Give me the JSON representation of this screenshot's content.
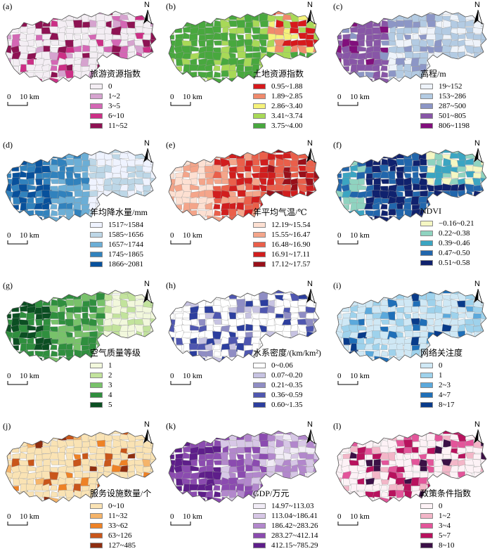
{
  "panels": [
    {
      "label": "(a)",
      "title": "旅游资源指数",
      "classes": [
        {
          "label": "0",
          "color": "#f4eef4"
        },
        {
          "label": "1~2",
          "color": "#d6a3cf"
        },
        {
          "label": "3~5",
          "color": "#d467b5"
        },
        {
          "label": "6~10",
          "color": "#cc2f86"
        },
        {
          "label": "11~52",
          "color": "#8e1253"
        }
      ]
    },
    {
      "label": "(b)",
      "title": "土地资源指数",
      "classes": [
        {
          "label": "0.95~1.88",
          "color": "#d7191c"
        },
        {
          "label": "1.89~2.85",
          "color": "#f08a6c"
        },
        {
          "label": "2.86~3.40",
          "color": "#f5f27a"
        },
        {
          "label": "3.41~3.74",
          "color": "#a8d957"
        },
        {
          "label": "3.75~4.00",
          "color": "#48a83e"
        }
      ]
    },
    {
      "label": "(c)",
      "title": "高程/m",
      "classes": [
        {
          "label": "19~152",
          "color": "#eef3fa"
        },
        {
          "label": "153~286",
          "color": "#b3cbe3"
        },
        {
          "label": "287~500",
          "color": "#8c96c6"
        },
        {
          "label": "501~805",
          "color": "#8856a7"
        },
        {
          "label": "806~1198",
          "color": "#810f7c"
        }
      ]
    },
    {
      "label": "(d)",
      "title": "年均降水量/mm",
      "classes": [
        {
          "label": "1517~1584",
          "color": "#eff3ff"
        },
        {
          "label": "1585~1656",
          "color": "#bdd7e7"
        },
        {
          "label": "1657~1744",
          "color": "#6baed6"
        },
        {
          "label": "1745~1865",
          "color": "#3182bd"
        },
        {
          "label": "1866~2081",
          "color": "#08519c"
        }
      ]
    },
    {
      "label": "(e)",
      "title": "年平均气温/℃",
      "classes": [
        {
          "label": "12.19~15.54",
          "color": "#fde0d2"
        },
        {
          "label": "15.55~16.47",
          "color": "#f4a58a"
        },
        {
          "label": "16.48~16.90",
          "color": "#ea5f4a"
        },
        {
          "label": "16.91~17.11",
          "color": "#d11e1e"
        },
        {
          "label": "17.12~17.57",
          "color": "#99101a"
        }
      ]
    },
    {
      "label": "(f)",
      "title": "NDVI",
      "classes": [
        {
          "label": "−0.16~0.21",
          "color": "#f5f7c3"
        },
        {
          "label": "0.22~0.38",
          "color": "#8fd3c0"
        },
        {
          "label": "0.39~0.46",
          "color": "#3ba5c2"
        },
        {
          "label": "0.47~0.50",
          "color": "#2166ac"
        },
        {
          "label": "0.51~0.58",
          "color": "#10226e"
        }
      ]
    },
    {
      "label": "(g)",
      "title": "空气质量等级",
      "classes": [
        {
          "label": "1",
          "color": "#f2f8dc"
        },
        {
          "label": "2",
          "color": "#c2e39c"
        },
        {
          "label": "3",
          "color": "#78c26a"
        },
        {
          "label": "4",
          "color": "#2f8f3e"
        },
        {
          "label": "5",
          "color": "#0b4f22"
        }
      ]
    },
    {
      "label": "(h)",
      "title": "水系密度/(km/km²)",
      "classes": [
        {
          "label": "0~0.06",
          "color": "#ffffff"
        },
        {
          "label": "0.07~0.20",
          "color": "#c7c3e2"
        },
        {
          "label": "0.21~0.35",
          "color": "#8f8dc4"
        },
        {
          "label": "0.36~0.59",
          "color": "#4f57b0"
        },
        {
          "label": "0.60~1.35",
          "color": "#2c3e9e"
        }
      ]
    },
    {
      "label": "(i)",
      "title": "网络关注度",
      "classes": [
        {
          "label": "0",
          "color": "#cfe8f5"
        },
        {
          "label": "1",
          "color": "#9ed2ec"
        },
        {
          "label": "2~3",
          "color": "#5ba9dc"
        },
        {
          "label": "4~7",
          "color": "#1f6fb8"
        },
        {
          "label": "8~17",
          "color": "#083b8a"
        }
      ]
    },
    {
      "label": "(j)",
      "title": "服务设施数量/个",
      "classes": [
        {
          "label": "0~10",
          "color": "#fae3b4"
        },
        {
          "label": "11~32",
          "color": "#f5b46a"
        },
        {
          "label": "33~62",
          "color": "#ee8226"
        },
        {
          "label": "63~126",
          "color": "#c9561a"
        },
        {
          "label": "127~485",
          "color": "#8f2e10"
        }
      ]
    },
    {
      "label": "(k)",
      "title": "GDP/万元",
      "classes": [
        {
          "label": "14.97~113.03",
          "color": "#f1ecf6"
        },
        {
          "label": "113.04~186.41",
          "color": "#d7c7e6"
        },
        {
          "label": "186.42~283.26",
          "color": "#b287cc"
        },
        {
          "label": "283.27~412.14",
          "color": "#8b4bb0"
        },
        {
          "label": "412.15~785.29",
          "color": "#5e1e8a"
        }
      ]
    },
    {
      "label": "(l)",
      "title": "政策条件指数",
      "classes": [
        {
          "label": "0",
          "color": "#fdf2f6"
        },
        {
          "label": "1~2",
          "color": "#f3b6c8"
        },
        {
          "label": "3~4",
          "color": "#e3559a"
        },
        {
          "label": "5~7",
          "color": "#b8125e"
        },
        {
          "label": "8~10",
          "color": "#3b1046"
        }
      ]
    }
  ],
  "north_label": "N",
  "scalebar": {
    "zero": "0",
    "distance": "10 km"
  }
}
